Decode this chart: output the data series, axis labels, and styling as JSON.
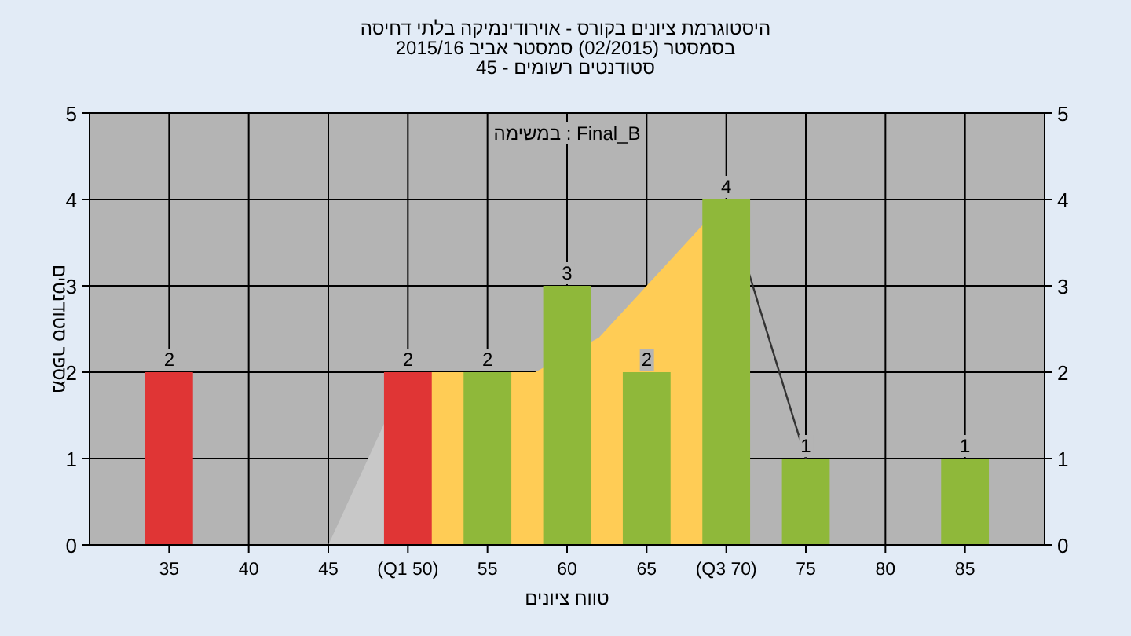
{
  "chart_data": {
    "type": "bar",
    "title": "היסטוגרמת ציונים בקורס - אוירודינמיקה בלתי דחיסה",
    "subtitle": "בסמסטר  (02/2015)  סמסטר אביב 2015/16",
    "xlabel": "טווח ציונים",
    "ylabel": "מספר סטודנטים",
    "annotations": [
      "סטודנטים רשומים - 45",
      "במשימה : Final_B"
    ],
    "x": [
      35,
      40,
      45,
      50,
      55,
      60,
      65,
      70,
      75,
      80,
      85
    ],
    "xlim": [
      30,
      90
    ],
    "xticks": [
      35,
      40,
      45,
      {
        "value": 50,
        "label": "(Q1 50)"
      },
      55,
      60,
      65,
      {
        "value": 70,
        "label": "(Q3 70)"
      },
      75,
      80,
      85
    ],
    "ylim": [
      0,
      5
    ],
    "yticks": [
      0,
      1,
      2,
      3,
      4,
      5
    ],
    "y2lim": [
      0,
      5
    ],
    "y2ticks": [
      0,
      1,
      2,
      3,
      4,
      5
    ],
    "grid": true,
    "series": [
      {
        "type": "area",
        "color": "#c8c8c8",
        "x": [
          45,
          50
        ],
        "values": [
          0,
          2
        ]
      },
      {
        "type": "area",
        "color": "#ffcc55",
        "x": [
          50,
          55,
          58,
          62,
          70
        ],
        "values": [
          2,
          2,
          2,
          2.4,
          4
        ]
      },
      {
        "type": "line",
        "color": "#333333",
        "x": [
          70,
          75
        ],
        "values": [
          4,
          1
        ]
      },
      {
        "colors": [
          "#e03535",
          "#8fb83a",
          "#8fb83a",
          "#e03535",
          "#8fb83a",
          "#8fb83a",
          "#8fb83a",
          "#8fb83a",
          "#8fb83a",
          "#8fb83a",
          "#8fb83a"
        ],
        "values": [
          2,
          0,
          0,
          2,
          2,
          3,
          2,
          4,
          1,
          0,
          1
        ],
        "value_labels": [
          "2",
          null,
          null,
          "2",
          "2",
          "3",
          "2",
          "4",
          "1",
          null,
          "1"
        ]
      }
    ]
  }
}
